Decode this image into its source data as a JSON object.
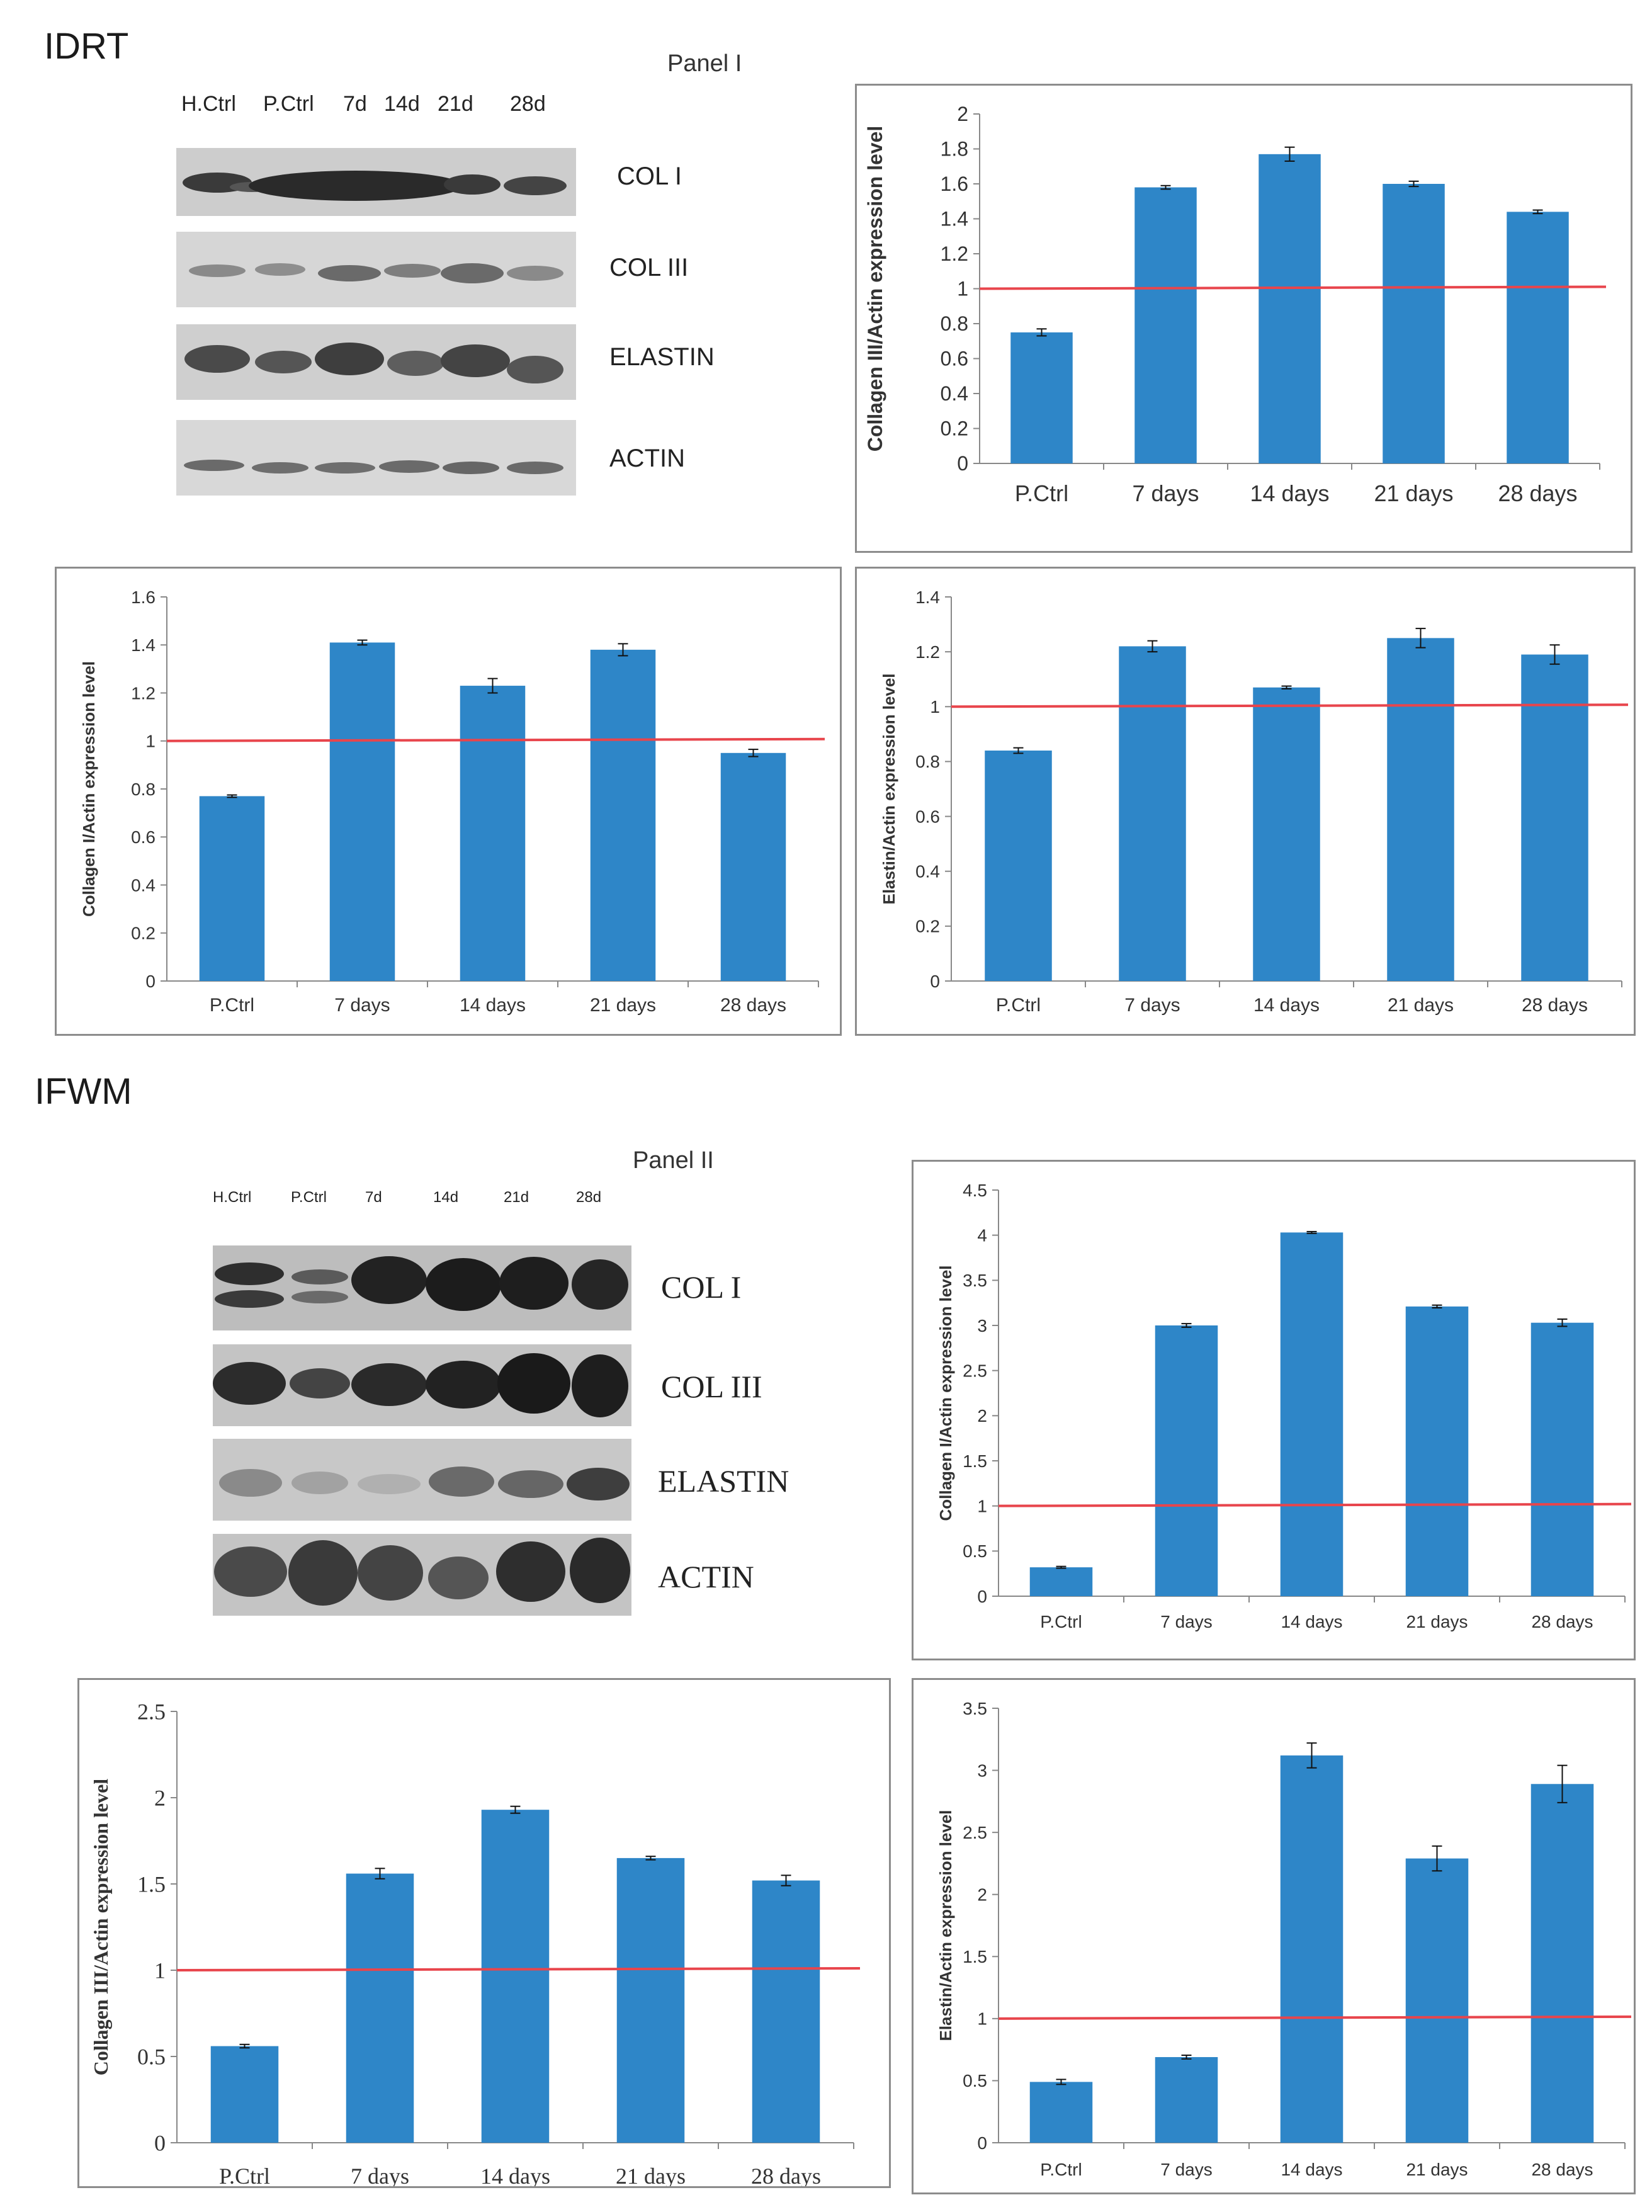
{
  "sections": {
    "top": {
      "title": "IDRT",
      "panel": "Panel I",
      "lanes": [
        "H.Ctrl",
        "P.Ctrl",
        "7d",
        "14d",
        "21d",
        "28d"
      ],
      "bands": [
        "COL I",
        "COL III",
        "ELASTIN",
        "ACTIN"
      ]
    },
    "bottom": {
      "title": "IFWM",
      "panel": "Panel II",
      "lanes": [
        "H.Ctrl",
        "P.Ctrl",
        "7d",
        "14d",
        "21d",
        "28d"
      ],
      "bands": [
        "COL I",
        "COL III",
        "ELASTIN",
        "ACTIN"
      ]
    }
  },
  "colors": {
    "bar": "#2e86c8",
    "reference_line": "#e8454c",
    "frame": "#8c8c8c"
  },
  "chart_data": [
    {
      "id": "idrt-col3",
      "type": "bar",
      "categories": [
        "P.Ctrl",
        "7 days",
        "14 days",
        "21 days",
        "28 days"
      ],
      "values": [
        0.75,
        1.58,
        1.77,
        1.6,
        1.44
      ],
      "errors": [
        0.02,
        0.01,
        0.04,
        0.015,
        0.01
      ],
      "ylabel": "Collagen III/Actin expression level",
      "ylim": [
        0,
        2
      ],
      "yticks": [
        0,
        0.2,
        0.4,
        0.6,
        0.8,
        1,
        1.2,
        1.4,
        1.6,
        1.8,
        2
      ],
      "reference_line": 1,
      "grid": false
    },
    {
      "id": "idrt-col1",
      "type": "bar",
      "categories": [
        "P.Ctrl",
        "7 days",
        "14 days",
        "21 days",
        "28 days"
      ],
      "values": [
        0.77,
        1.41,
        1.23,
        1.38,
        0.95
      ],
      "errors": [
        0.005,
        0.01,
        0.03,
        0.025,
        0.015
      ],
      "ylabel": "Collagen I/Actin expression level",
      "ylim": [
        0,
        1.6
      ],
      "yticks": [
        0,
        0.2,
        0.4,
        0.6,
        0.8,
        1,
        1.2,
        1.4,
        1.6
      ],
      "reference_line": 1,
      "grid": false
    },
    {
      "id": "idrt-elastin",
      "type": "bar",
      "categories": [
        "P.Ctrl",
        "7 days",
        "14 days",
        "21 days",
        "28 days"
      ],
      "values": [
        0.84,
        1.22,
        1.07,
        1.25,
        1.19
      ],
      "errors": [
        0.01,
        0.02,
        0.005,
        0.035,
        0.035
      ],
      "ylabel": "Elastin/Actin expression level",
      "ylim": [
        0,
        1.4
      ],
      "yticks": [
        0,
        0.2,
        0.4,
        0.6,
        0.8,
        1,
        1.2,
        1.4
      ],
      "reference_line": 1,
      "grid": false
    },
    {
      "id": "ifwm-col1",
      "type": "bar",
      "categories": [
        "P.Ctrl",
        "7 days",
        "14 days",
        "21 days",
        "28 days"
      ],
      "values": [
        0.32,
        3.0,
        4.03,
        3.21,
        3.03
      ],
      "errors": [
        0.01,
        0.02,
        0.01,
        0.015,
        0.04
      ],
      "ylabel": "Collagen I/Actin expression level",
      "ylim": [
        0,
        4.5
      ],
      "yticks": [
        0,
        0.5,
        1,
        1.5,
        2,
        2.5,
        3,
        3.5,
        4,
        4.5
      ],
      "reference_line": 1,
      "grid": false
    },
    {
      "id": "ifwm-col3",
      "type": "bar",
      "categories": [
        "P.Ctrl",
        "7 days",
        "14 days",
        "21 days",
        "28 days"
      ],
      "values": [
        0.56,
        1.56,
        1.93,
        1.65,
        1.52
      ],
      "errors": [
        0.01,
        0.03,
        0.02,
        0.01,
        0.03
      ],
      "ylabel": "Collagen III/Actin expression level",
      "ylim": [
        0,
        2.5
      ],
      "yticks": [
        0,
        0.5,
        1,
        1.5,
        2,
        2.5
      ],
      "reference_line": 1,
      "grid": false
    },
    {
      "id": "ifwm-elastin",
      "type": "bar",
      "categories": [
        "P.Ctrl",
        "7 days",
        "14 days",
        "21 days",
        "28 days"
      ],
      "values": [
        0.49,
        0.69,
        3.12,
        2.29,
        2.89
      ],
      "errors": [
        0.02,
        0.015,
        0.1,
        0.1,
        0.15
      ],
      "ylabel": "Elastin/Actin expression level",
      "ylim": [
        0,
        3.5
      ],
      "yticks": [
        0,
        0.5,
        1,
        1.5,
        2,
        2.5,
        3,
        3.5
      ],
      "reference_line": 1,
      "grid": false
    }
  ]
}
